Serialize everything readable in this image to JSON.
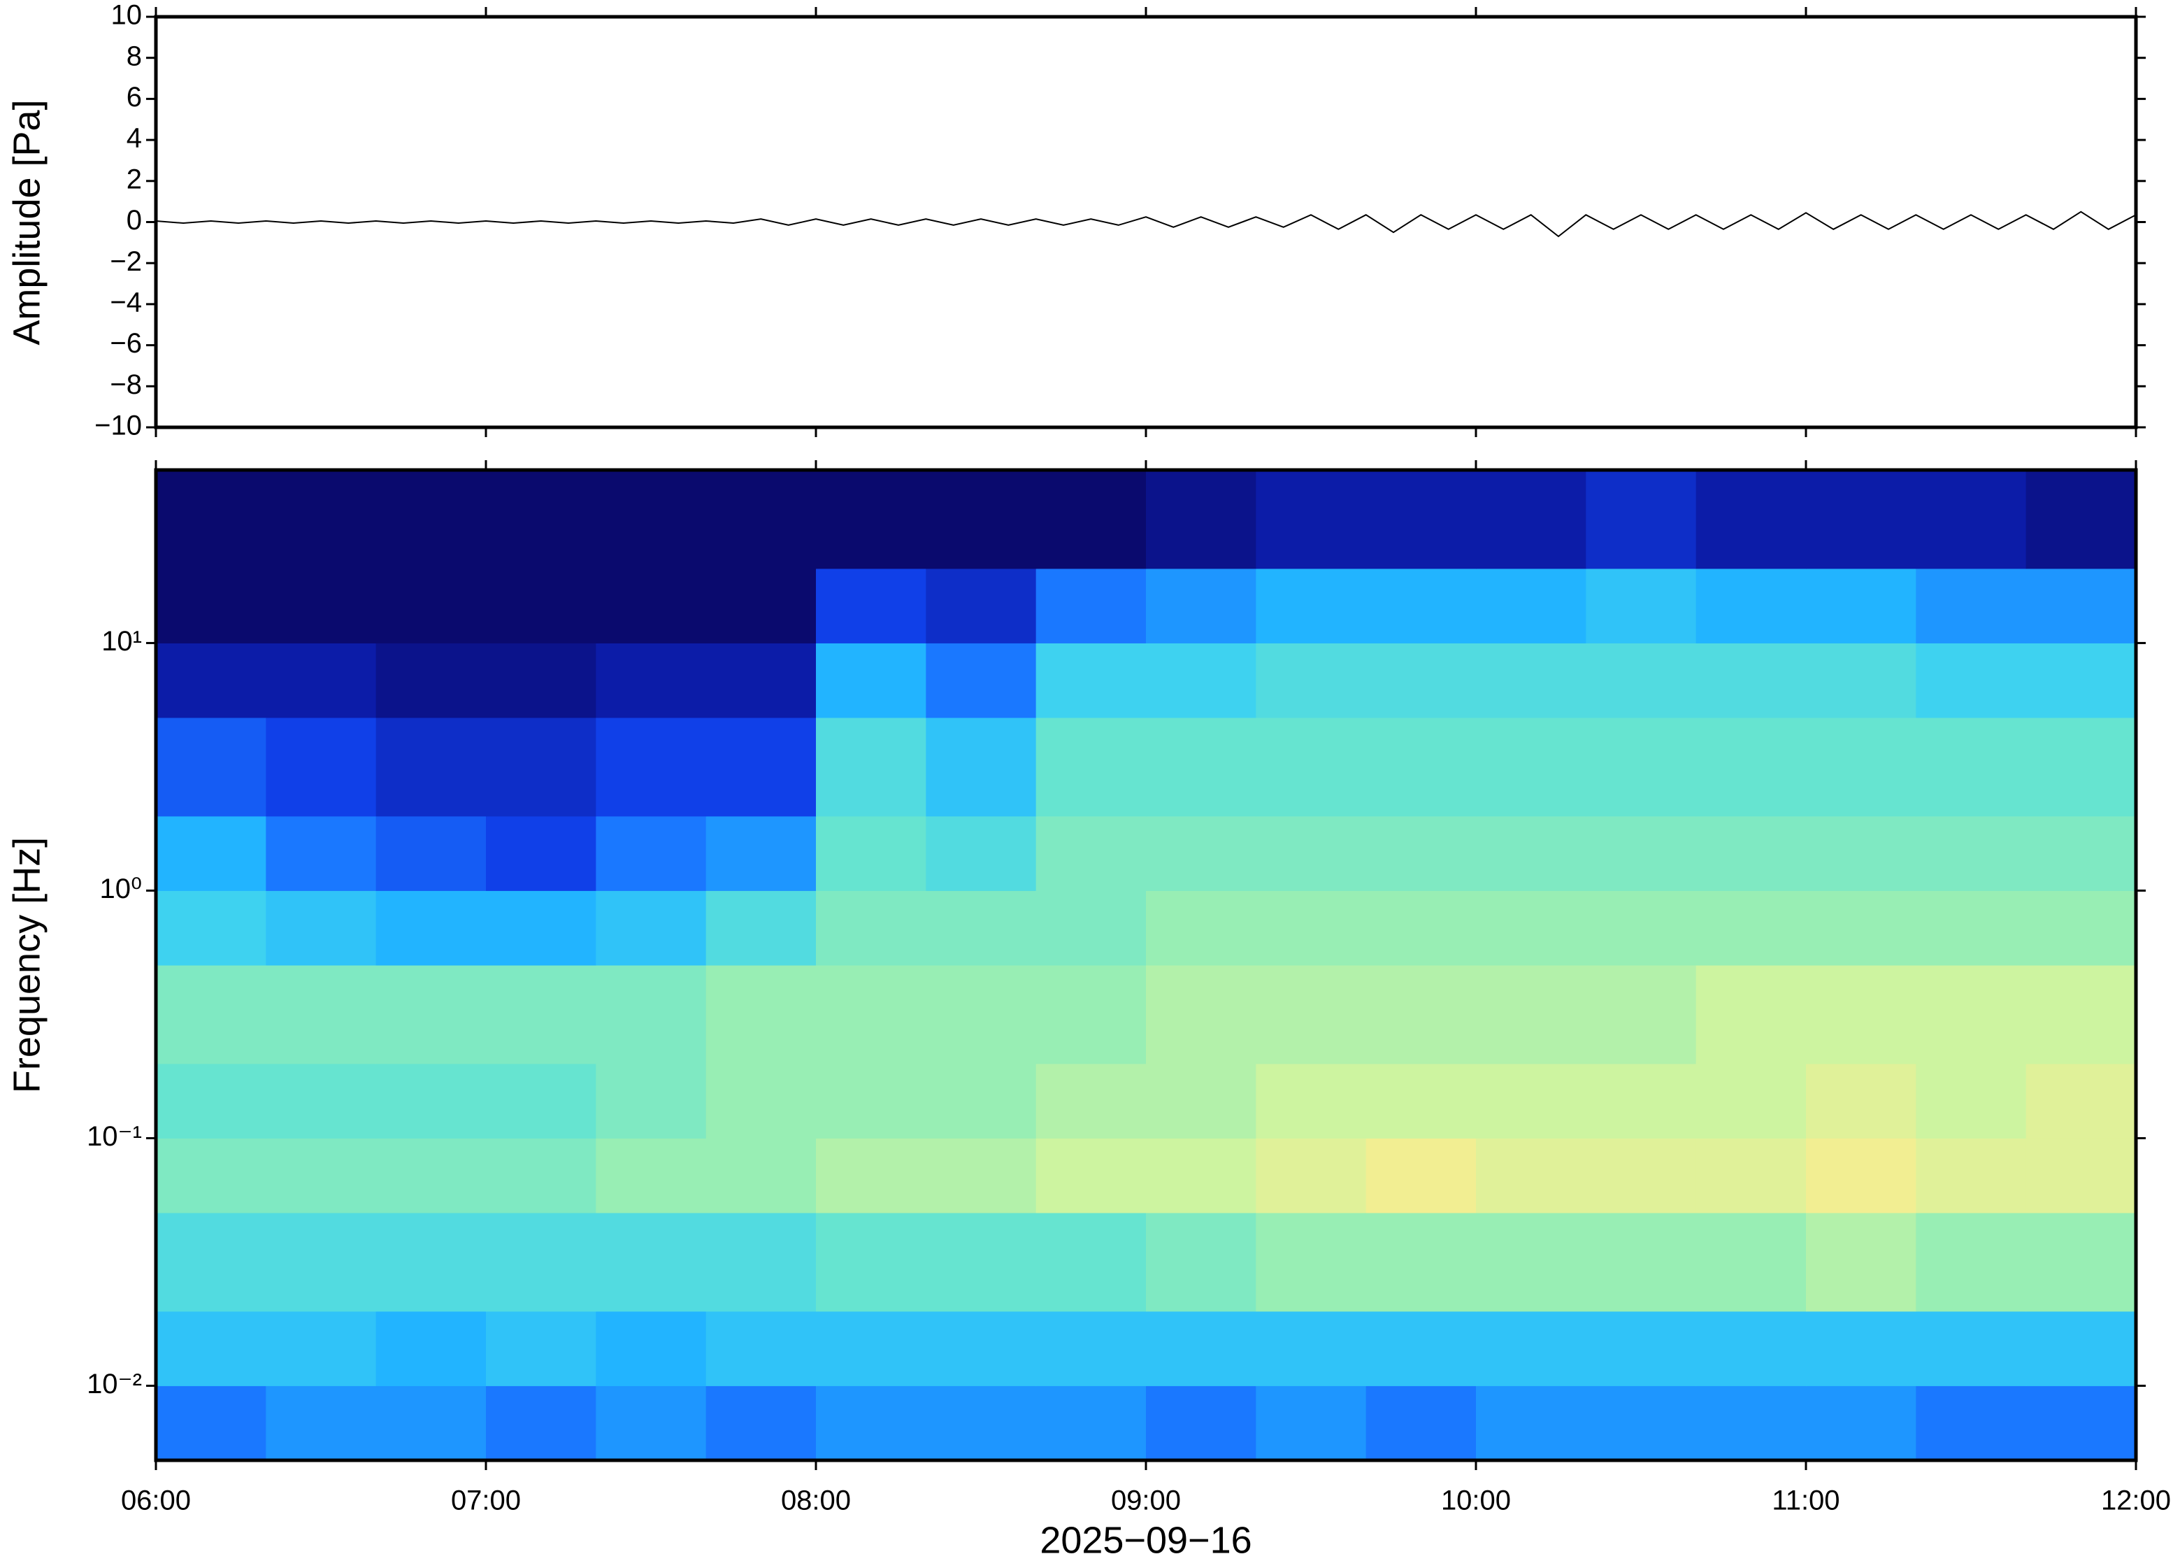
{
  "chart_data": [
    {
      "type": "line",
      "ylabel": "Amplitude [Pa]",
      "xlim": [
        "06:00",
        "12:00"
      ],
      "xticks": [
        "06:00",
        "07:00",
        "08:00",
        "09:00",
        "10:00",
        "11:00",
        "12:00"
      ],
      "ylim": [
        -10,
        10
      ],
      "yticks": [
        {
          "value": -10,
          "label": "−10"
        },
        {
          "value": -8,
          "label": "−8"
        },
        {
          "value": -6,
          "label": "−6"
        },
        {
          "value": -4,
          "label": "−4"
        },
        {
          "value": -2,
          "label": "−2"
        },
        0,
        2,
        4,
        6,
        8,
        10
      ],
      "color": "#000000",
      "x": [
        "06:00",
        "06:05",
        "06:10",
        "06:15",
        "06:20",
        "06:25",
        "06:30",
        "06:35",
        "06:40",
        "06:45",
        "06:50",
        "06:55",
        "07:00",
        "07:05",
        "07:10",
        "07:15",
        "07:20",
        "07:25",
        "07:30",
        "07:35",
        "07:40",
        "07:45",
        "07:50",
        "07:55",
        "08:00",
        "08:05",
        "08:10",
        "08:15",
        "08:20",
        "08:25",
        "08:30",
        "08:35",
        "08:40",
        "08:45",
        "08:50",
        "08:55",
        "09:00",
        "09:05",
        "09:10",
        "09:15",
        "09:20",
        "09:25",
        "09:30",
        "09:35",
        "09:40",
        "09:45",
        "09:50",
        "09:55",
        "10:00",
        "10:05",
        "10:10",
        "10:15",
        "10:20",
        "10:25",
        "10:30",
        "10:35",
        "10:40",
        "10:45",
        "10:50",
        "10:55",
        "11:00",
        "11:05",
        "11:10",
        "11:15",
        "11:20",
        "11:25",
        "11:30",
        "11:35",
        "11:40",
        "11:45",
        "11:50",
        "11:55",
        "12:00"
      ],
      "values": [
        0.05,
        -0.05,
        0.05,
        -0.05,
        0.05,
        -0.05,
        0.05,
        -0.05,
        0.05,
        -0.05,
        0.05,
        -0.05,
        0.05,
        -0.05,
        0.05,
        -0.05,
        0.05,
        -0.05,
        0.05,
        -0.05,
        0.05,
        -0.05,
        0.15,
        -0.15,
        0.15,
        -0.15,
        0.15,
        -0.15,
        0.15,
        -0.15,
        0.15,
        -0.15,
        0.15,
        -0.15,
        0.15,
        -0.15,
        0.25,
        -0.25,
        0.25,
        -0.25,
        0.25,
        -0.25,
        0.35,
        -0.35,
        0.35,
        -0.5,
        0.35,
        -0.35,
        0.35,
        -0.35,
        0.35,
        -0.7,
        0.35,
        -0.35,
        0.35,
        -0.35,
        0.35,
        -0.35,
        0.35,
        -0.35,
        0.45,
        -0.35,
        0.35,
        -0.35,
        0.35,
        -0.35,
        0.35,
        -0.35,
        0.35,
        -0.35,
        0.5,
        -0.35,
        0.35
      ]
    },
    {
      "type": "heatmap",
      "ylabel": "Frequency [Hz]",
      "xlabel": "2025−09−16",
      "xlim": [
        "06:00",
        "12:00"
      ],
      "xticks": [
        "06:00",
        "07:00",
        "08:00",
        "09:00",
        "10:00",
        "11:00",
        "12:00"
      ],
      "ylim": [
        0.005,
        50
      ],
      "log_y": true,
      "yticks": [
        {
          "value": 0.01,
          "label": "10⁻²"
        },
        {
          "value": 0.1,
          "label": "10⁻¹"
        },
        {
          "value": 1,
          "label": "10⁰"
        },
        {
          "value": 10,
          "label": "10¹"
        }
      ],
      "x_edges": [
        "06:00",
        "06:20",
        "06:40",
        "07:00",
        "07:20",
        "07:40",
        "08:00",
        "08:20",
        "08:40",
        "09:00",
        "09:20",
        "09:40",
        "10:00",
        "10:20",
        "10:40",
        "11:00",
        "11:20",
        "11:40",
        "12:00"
      ],
      "y_edges": [
        0.005,
        0.01,
        0.02,
        0.05,
        0.1,
        0.2,
        0.5,
        1,
        2,
        5,
        10,
        20,
        50
      ],
      "zlim": [
        0,
        10
      ],
      "colormap": [
        "#0a0a6e",
        "#0c1ca8",
        "#1040e8",
        "#1a78ff",
        "#22b4ff",
        "#3ed2f0",
        "#66e4d0",
        "#98eeb4",
        "#cdf4a0",
        "#f2ee92",
        "#f7c487"
      ],
      "z": [
        [
          3,
          3.5,
          3.5,
          3,
          3.5,
          3,
          3.5,
          3.5,
          3.5,
          3,
          3.5,
          3,
          3.5,
          3.5,
          3.5,
          3.5,
          3,
          3
        ],
        [
          4.5,
          4.5,
          4,
          4.5,
          4,
          4.5,
          4.5,
          4.5,
          4.5,
          4.5,
          4.5,
          4.5,
          4.5,
          4.5,
          4.5,
          4.5,
          4.5,
          4.5
        ],
        [
          5.5,
          5.5,
          5.5,
          5.5,
          5.5,
          5.5,
          6,
          6,
          6,
          6.5,
          7,
          7,
          7,
          7,
          7,
          7.5,
          7,
          7
        ],
        [
          6.5,
          6.5,
          6.5,
          6.5,
          7,
          7,
          7.5,
          7.5,
          8,
          8,
          8.5,
          9,
          8.5,
          8.5,
          8.5,
          9,
          8.5,
          8.5
        ],
        [
          6,
          6,
          6,
          6,
          6.5,
          7,
          7,
          7,
          7.5,
          7.5,
          8,
          8,
          8,
          8,
          8,
          8.5,
          8,
          8.5
        ],
        [
          6.5,
          6.5,
          6.5,
          6.5,
          6.5,
          7,
          7,
          7,
          7,
          7.5,
          7.5,
          7.5,
          7.5,
          7.5,
          8,
          8,
          8,
          8
        ],
        [
          5,
          4.5,
          4,
          4,
          4.5,
          5.5,
          6.5,
          6.5,
          6.5,
          7,
          7,
          7,
          7,
          7,
          7,
          7,
          7,
          7
        ],
        [
          4,
          3,
          2.5,
          2,
          3,
          3.5,
          6,
          5.5,
          6.5,
          6.5,
          6.5,
          6.5,
          6.5,
          6.5,
          6.5,
          6.5,
          6.5,
          6.5
        ],
        [
          2.5,
          2,
          1.5,
          1.5,
          2,
          2,
          5.5,
          4.5,
          6,
          6,
          6,
          6,
          6,
          6,
          6,
          6,
          6,
          6
        ],
        [
          1,
          1,
          0.5,
          0.5,
          1,
          1,
          4,
          3,
          5,
          5,
          5.5,
          5.5,
          5.5,
          5.5,
          5.5,
          5.5,
          5,
          5
        ],
        [
          0,
          0,
          0,
          0,
          0,
          0,
          2,
          1.5,
          3,
          3.5,
          4,
          4,
          4,
          4.5,
          4,
          4,
          3.5,
          3.5
        ],
        [
          0,
          0,
          0,
          0,
          0,
          0,
          0,
          0,
          0,
          0.5,
          1,
          1,
          1,
          1.5,
          1,
          1,
          1,
          0.5
        ]
      ]
    }
  ]
}
